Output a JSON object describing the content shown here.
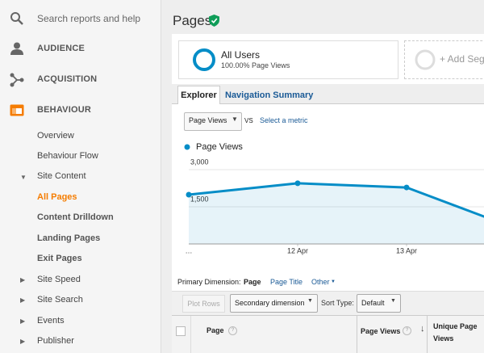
{
  "sidebar": {
    "search_placeholder": "Search reports and help",
    "sections": [
      "AUDIENCE",
      "ACQUISITION",
      "BEHAVIOUR"
    ],
    "behaviour_items": [
      "Overview",
      "Behaviour Flow",
      "Site Content",
      "All Pages",
      "Content Drilldown",
      "Landing Pages",
      "Exit Pages",
      "Site Speed",
      "Site Search",
      "Events",
      "Publisher"
    ]
  },
  "header": {
    "title": "Pages"
  },
  "segments": {
    "name": "All Users",
    "detail": "100.00% Page Views",
    "add": "+ Add Segment"
  },
  "tabs": [
    "Explorer",
    "Navigation Summary"
  ],
  "metric_selector": {
    "metric": "Page Views",
    "vs": "VS",
    "compare": "Select a metric"
  },
  "chart_data": {
    "type": "line",
    "categories": [
      "…",
      "12 Apr",
      "13 Apr",
      null
    ],
    "series": [
      {
        "name": "Page Views",
        "color": "#058dc7",
        "values": [
          1990,
          2450,
          2280,
          630
        ]
      }
    ],
    "ylim": [
      0,
      3000
    ],
    "yticks": [
      {
        "value": 1500,
        "label": "1,500"
      },
      {
        "value": 3000,
        "label": "3,000"
      }
    ],
    "grid": true
  },
  "dimension": {
    "label": "Primary Dimension:",
    "options": [
      "Page",
      "Page Title",
      "Other"
    ]
  },
  "toolbar": {
    "plot_rows": "Plot Rows",
    "secondary": "Secondary dimension",
    "sort_label": "Sort Type:",
    "sort_value": "Default"
  },
  "table": {
    "columns": [
      "Page",
      "Page Views",
      "Unique Page Views"
    ]
  }
}
